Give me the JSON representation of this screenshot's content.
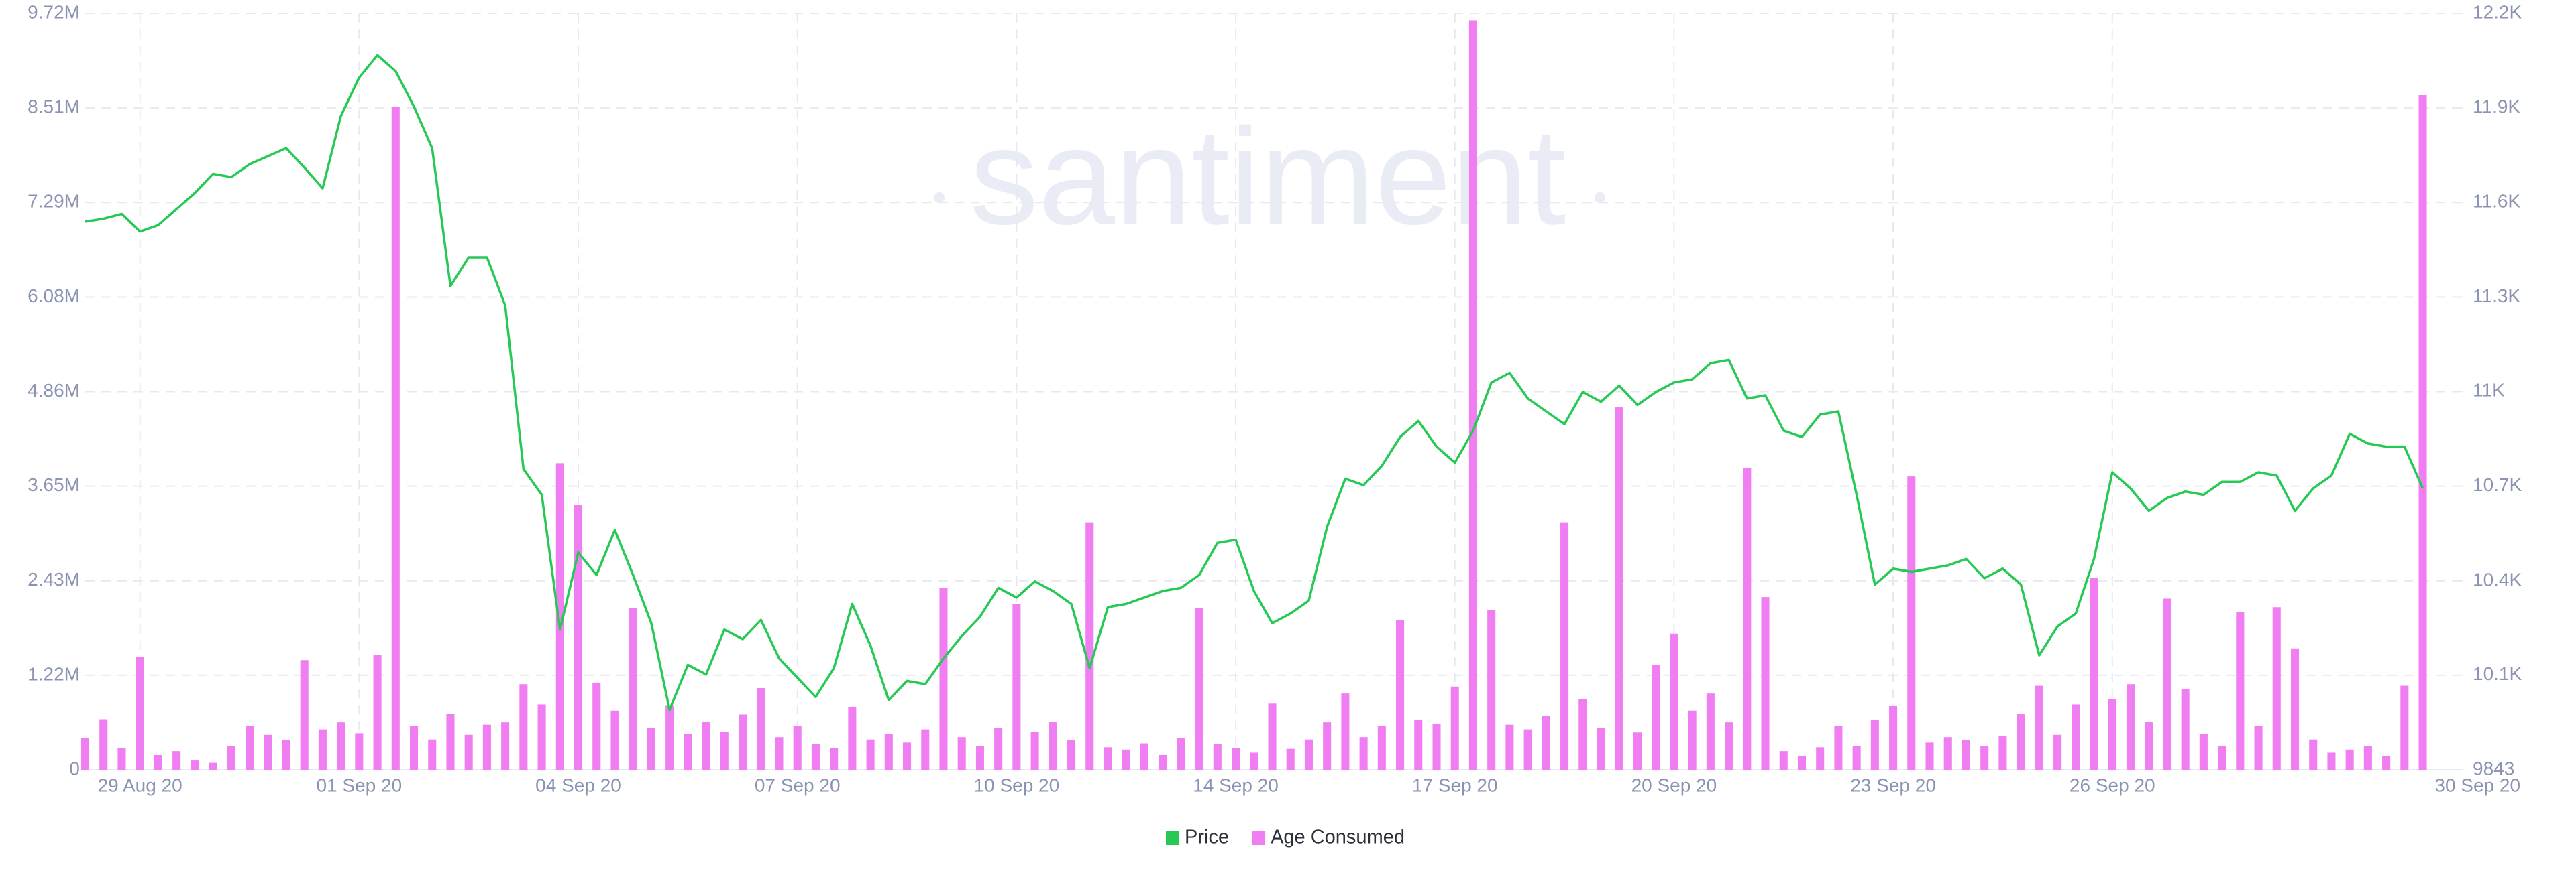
{
  "chart_data": {
    "type": "line",
    "watermark": "santiment",
    "grid": true,
    "legend": "bottom",
    "xlim": [
      -0.75,
      31.75
    ],
    "xticks": [
      {
        "value": 0,
        "label": "29 Aug 20"
      },
      {
        "value": 3,
        "label": "01 Sep 20"
      },
      {
        "value": 6,
        "label": "04 Sep 20"
      },
      {
        "value": 9,
        "label": "07 Sep 20"
      },
      {
        "value": 12,
        "label": "10 Sep 20"
      },
      {
        "value": 15,
        "label": "14 Sep 20"
      },
      {
        "value": 18,
        "label": "17 Sep 20"
      },
      {
        "value": 21,
        "label": "20 Sep 20"
      },
      {
        "value": 24,
        "label": "23 Sep 20"
      },
      {
        "value": 27,
        "label": "26 Sep 20"
      },
      {
        "value": 32,
        "label": "30 Sep 20"
      }
    ],
    "ylim": [
      0,
      9720000
    ],
    "yticks": [
      0,
      {
        "value": 1215000,
        "label": "1.22M"
      },
      {
        "value": 2430000,
        "label": "2.43M"
      },
      {
        "value": 3645000,
        "label": "3.65M"
      },
      {
        "value": 4860000,
        "label": "4.86M"
      },
      {
        "value": 6075000,
        "label": "6.08M"
      },
      {
        "value": 7290000,
        "label": "7.29M"
      },
      {
        "value": 8505000,
        "label": "8.51M"
      },
      {
        "value": 9720000,
        "label": "9.72M"
      }
    ],
    "y2lim": [
      9843,
      12200
    ],
    "y2ticks": [
      9843,
      {
        "value": 10138,
        "label": "10.1K"
      },
      {
        "value": 10432,
        "label": "10.4K"
      },
      {
        "value": 10727,
        "label": "10.7K"
      },
      {
        "value": 11022,
        "label": "11K"
      },
      {
        "value": 11316,
        "label": "11.3K"
      },
      {
        "value": 11611,
        "label": "11.6K"
      },
      {
        "value": 11905,
        "label": "11.9K"
      },
      {
        "value": 12200,
        "label": "12.2K"
      }
    ],
    "x": [
      -0.75,
      -0.5,
      -0.25,
      0,
      0.25,
      0.5,
      0.75,
      1,
      1.25,
      1.5,
      1.75,
      2,
      2.25,
      2.5,
      2.75,
      3,
      3.25,
      3.5,
      3.75,
      4,
      4.25,
      4.5,
      4.75,
      5,
      5.25,
      5.5,
      5.75,
      6,
      6.25,
      6.5,
      6.75,
      7,
      7.25,
      7.5,
      7.75,
      8,
      8.25,
      8.5,
      8.75,
      9,
      9.25,
      9.5,
      9.75,
      10,
      10.25,
      10.5,
      10.75,
      11,
      11.25,
      11.5,
      11.75,
      12,
      12.25,
      12.5,
      12.75,
      13,
      13.25,
      13.5,
      13.75,
      14,
      14.25,
      14.5,
      14.75,
      15,
      15.25,
      15.5,
      15.75,
      16,
      16.25,
      16.5,
      16.75,
      17,
      17.25,
      17.5,
      17.75,
      18,
      18.25,
      18.5,
      18.75,
      19,
      19.25,
      19.5,
      19.75,
      20,
      20.25,
      20.5,
      20.75,
      21,
      21.25,
      21.5,
      21.75,
      22,
      22.25,
      22.5,
      22.75,
      23,
      23.25,
      23.5,
      23.75,
      24,
      24.25,
      24.5,
      24.75,
      25,
      25.25,
      25.5,
      25.75,
      26,
      26.25,
      26.5,
      26.75,
      27,
      27.25,
      27.5,
      27.75,
      28,
      28.25,
      28.5,
      28.75,
      29,
      29.25,
      29.5,
      29.75,
      30,
      30.25,
      30.5,
      30.75,
      31,
      31.25
    ],
    "series": [
      {
        "name": "Price",
        "color": "#26c953",
        "type": "line",
        "axis": "y2",
        "values": [
          11551,
          11560,
          11575,
          11520,
          11540,
          11590,
          11640,
          11700,
          11690,
          11730,
          11755,
          11780,
          11720,
          11655,
          11880,
          12000,
          12070,
          12020,
          11910,
          11780,
          11350,
          11440,
          11440,
          11290,
          10780,
          10700,
          10280,
          10520,
          10450,
          10590,
          10450,
          10300,
          10030,
          10170,
          10140,
          10280,
          10250,
          10310,
          10190,
          10130,
          10070,
          10160,
          10360,
          10230,
          10060,
          10120,
          10110,
          10190,
          10260,
          10320,
          10410,
          10380,
          10430,
          10400,
          10360,
          10160,
          10350,
          10360,
          10380,
          10400,
          10410,
          10450,
          10550,
          10560,
          10400,
          10300,
          10330,
          10370,
          10600,
          10750,
          10730,
          10790,
          10880,
          10930,
          10850,
          10800,
          10900,
          11050,
          11080,
          11000,
          10960,
          10920,
          11020,
          10990,
          11040,
          10980,
          11020,
          11050,
          11060,
          11110,
          11120,
          11000,
          11010,
          10900,
          10880,
          10950,
          10960,
          10700,
          10420,
          10470,
          10460,
          10470,
          10480,
          10500,
          10440,
          10470,
          10420,
          10200,
          10290,
          10330,
          10500,
          10770,
          10720,
          10650,
          10690,
          10710,
          10700,
          10740,
          10740,
          10770,
          10760,
          10650,
          10720,
          10760,
          10890,
          10860,
          10850,
          10850,
          10720
        ]
      },
      {
        "name": "Age Consumed",
        "color": "#f07ef2",
        "type": "bar",
        "values": [
          410000,
          650000,
          280000,
          1450000,
          190000,
          240000,
          120000,
          90000,
          310000,
          560000,
          450000,
          380000,
          1410000,
          520000,
          610000,
          470000,
          1480000,
          8520000,
          560000,
          390000,
          720000,
          450000,
          580000,
          610000,
          1100000,
          840000,
          3940000,
          3400000,
          1120000,
          760000,
          2080000,
          540000,
          830000,
          460000,
          620000,
          490000,
          710000,
          1050000,
          420000,
          560000,
          330000,
          280000,
          810000,
          390000,
          460000,
          350000,
          520000,
          2340000,
          420000,
          310000,
          540000,
          2130000,
          490000,
          620000,
          380000,
          3180000,
          290000,
          260000,
          340000,
          190000,
          410000,
          2080000,
          330000,
          280000,
          220000,
          850000,
          270000,
          390000,
          610000,
          980000,
          420000,
          560000,
          1920000,
          640000,
          590000,
          1070000,
          9630000,
          2050000,
          580000,
          520000,
          690000,
          3180000,
          910000,
          540000,
          4660000,
          480000,
          1350000,
          1750000,
          760000,
          980000,
          610000,
          3880000,
          2220000,
          240000,
          180000,
          290000,
          560000,
          310000,
          640000,
          820000,
          3770000,
          350000,
          420000,
          380000,
          310000,
          430000,
          720000,
          1080000,
          450000,
          840000,
          2470000,
          910000,
          1100000,
          620000,
          2200000,
          1040000,
          460000,
          310000,
          2030000,
          560000,
          2090000,
          1560000,
          390000,
          220000,
          260000,
          310000,
          180000,
          1080000,
          8670000
        ]
      }
    ]
  }
}
